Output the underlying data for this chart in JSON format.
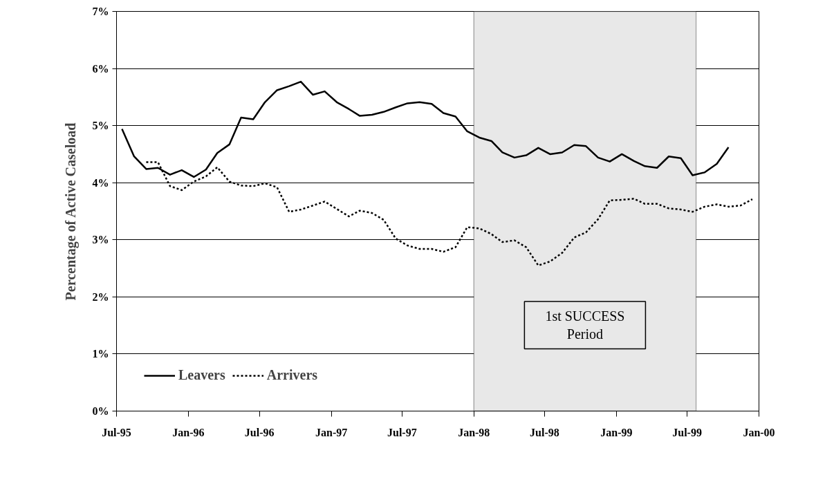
{
  "chart_data": {
    "type": "line",
    "ylabel": "Percentage of Active Caseload",
    "x": [
      "1995-07-15",
      "1995-08-15",
      "1995-09-15",
      "1995-10-15",
      "1995-11-15",
      "1995-12-15",
      "1996-01-15",
      "1996-02-15",
      "1996-03-15",
      "1996-04-15",
      "1996-05-15",
      "1996-06-15",
      "1996-07-15",
      "1996-08-15",
      "1996-09-15",
      "1996-10-15",
      "1996-11-15",
      "1996-12-15",
      "1997-01-15",
      "1997-02-15",
      "1997-03-15",
      "1997-04-15",
      "1997-05-15",
      "1997-06-15",
      "1997-07-15",
      "1997-08-15",
      "1997-09-15",
      "1997-10-15",
      "1997-11-15",
      "1997-12-15",
      "1998-01-15",
      "1998-02-15",
      "1998-03-15",
      "1998-04-15",
      "1998-05-15",
      "1998-06-15",
      "1998-07-15",
      "1998-08-15",
      "1998-09-15",
      "1998-10-15",
      "1998-11-15",
      "1998-12-15",
      "1999-01-15",
      "1999-02-15",
      "1999-03-15",
      "1999-04-15",
      "1999-05-15",
      "1999-06-15",
      "1999-07-15",
      "1999-08-15",
      "1999-09-15",
      "1999-10-15",
      "1999-11-15",
      "1999-12-15"
    ],
    "series": [
      {
        "name": "Leavers",
        "color": "#000000",
        "line_style": "solid",
        "values": [
          4.94,
          4.46,
          4.24,
          4.26,
          4.14,
          4.22,
          4.1,
          4.23,
          4.52,
          4.67,
          5.14,
          5.11,
          5.41,
          5.62,
          5.69,
          5.77,
          5.54,
          5.6,
          5.41,
          5.29,
          5.17,
          5.19,
          5.24,
          5.32,
          5.39,
          5.41,
          5.38,
          5.22,
          5.16,
          4.9,
          4.79,
          4.73,
          4.53,
          4.44,
          4.48,
          4.61,
          4.5,
          4.53,
          4.66,
          4.64,
          4.44,
          4.37,
          4.5,
          4.38,
          4.29,
          4.26,
          4.46,
          4.43,
          4.13,
          4.18,
          4.33,
          4.62,
          null,
          null
        ]
      },
      {
        "name": "Arrivers",
        "color": "#000000",
        "line_style": "dotted",
        "values": [
          null,
          null,
          4.36,
          4.36,
          3.94,
          3.87,
          4.02,
          4.11,
          4.27,
          4.02,
          3.95,
          3.94,
          3.99,
          3.92,
          3.49,
          3.53,
          3.6,
          3.67,
          3.54,
          3.41,
          3.51,
          3.47,
          3.35,
          3.02,
          2.9,
          2.84,
          2.84,
          2.79,
          2.87,
          3.22,
          3.2,
          3.1,
          2.96,
          2.99,
          2.87,
          2.55,
          2.62,
          2.77,
          3.04,
          3.13,
          3.36,
          3.69,
          3.7,
          3.72,
          3.63,
          3.63,
          3.55,
          3.53,
          3.49,
          3.58,
          3.62,
          3.58,
          3.6,
          3.71
        ]
      }
    ],
    "xlim": [
      "1995-07",
      "2000-01"
    ],
    "xticks": [
      {
        "value": "1995-07",
        "label": "Jul-95"
      },
      {
        "value": "1996-01",
        "label": "Jan-96"
      },
      {
        "value": "1996-07",
        "label": "Jul-96"
      },
      {
        "value": "1997-01",
        "label": "Jan-97"
      },
      {
        "value": "1997-07",
        "label": "Jul-97"
      },
      {
        "value": "1998-01",
        "label": "Jan-98"
      },
      {
        "value": "1998-07",
        "label": "Jul-98"
      },
      {
        "value": "1999-01",
        "label": "Jan-99"
      },
      {
        "value": "1999-07",
        "label": "Jul-99"
      },
      {
        "value": "2000-01",
        "label": "Jan-00"
      }
    ],
    "ylim": [
      0,
      7
    ],
    "yticks": [
      {
        "value": 0,
        "label": "0%"
      },
      {
        "value": 1,
        "label": "1%"
      },
      {
        "value": 2,
        "label": "2%"
      },
      {
        "value": 3,
        "label": "3%"
      },
      {
        "value": 4,
        "label": "4%"
      },
      {
        "value": 5,
        "label": "5%"
      },
      {
        "value": 6,
        "label": "6%"
      },
      {
        "value": 7,
        "label": "7%"
      }
    ],
    "bands": [
      {
        "axis": "x",
        "from": "1998-01",
        "to": "1999-07-24",
        "label": "1st SUCCESS Period",
        "color": "#e8e8e8"
      }
    ],
    "grid": "y",
    "legend": "bottom"
  }
}
